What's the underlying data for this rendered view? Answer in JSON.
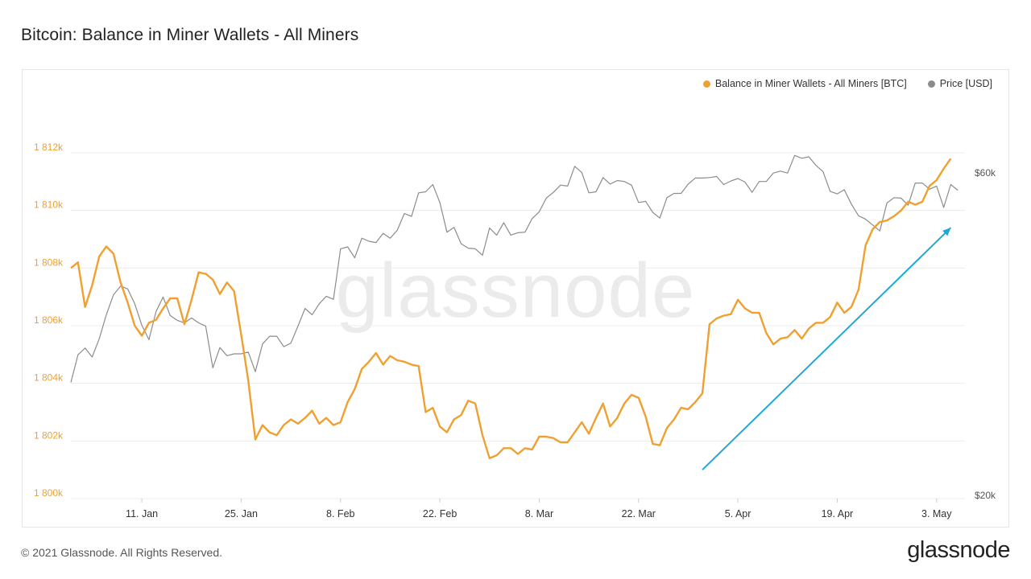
{
  "header": {
    "title": "Bitcoin: Balance in Miner Wallets - All Miners"
  },
  "footer": {
    "copyright": "© 2021 Glassnode. All Rights Reserved.",
    "logo_text": "glassnode"
  },
  "watermark": "glassnode",
  "colors": {
    "balance": "#f0a030",
    "price": "#8c8c8c",
    "arrow": "#1fa8d6",
    "grid": "#ececec"
  },
  "chart_data": {
    "type": "line",
    "title": "Bitcoin: Balance in Miner Wallets - All Miners",
    "legend": [
      {
        "key": "balance",
        "label": "Balance in Miner Wallets - All Miners [BTC]"
      },
      {
        "key": "price",
        "label": "Price [USD]"
      }
    ],
    "legend_position": "top-right",
    "grid": true,
    "x_ticks": [
      "11. Jan",
      "25. Jan",
      "8. Feb",
      "22. Feb",
      "8. Mar",
      "22. Mar",
      "5. Apr",
      "19. Apr",
      "3. May"
    ],
    "x_range": [
      "2021-01-01",
      "2021-05-08"
    ],
    "y_left": {
      "label": "Balance in Miner Wallets - All Miners [BTC]",
      "ticks": [
        "1 800k",
        "1 802k",
        "1 804k",
        "1 806k",
        "1 808k",
        "1 810k",
        "1 812k"
      ],
      "range": [
        1800000,
        1814000
      ]
    },
    "y_right": {
      "label": "Price [USD]",
      "ticks": [
        "$20k",
        "$60k"
      ],
      "scale": "log",
      "range": [
        20000,
        70000
      ]
    },
    "series": [
      {
        "name": "Balance in Miner Wallets - All Miners [BTC]",
        "key": "balance",
        "axis": "left",
        "points": [
          [
            "2021-01-01",
            1808000
          ],
          [
            "2021-01-02",
            1808200
          ],
          [
            "2021-01-03",
            1806650
          ],
          [
            "2021-01-04",
            1807400
          ],
          [
            "2021-01-05",
            1808400
          ],
          [
            "2021-01-06",
            1808750
          ],
          [
            "2021-01-07",
            1808500
          ],
          [
            "2021-01-08",
            1807500
          ],
          [
            "2021-01-09",
            1806800
          ],
          [
            "2021-01-10",
            1806000
          ],
          [
            "2021-01-11",
            1805650
          ],
          [
            "2021-01-12",
            1806100
          ],
          [
            "2021-01-13",
            1806200
          ],
          [
            "2021-01-14",
            1806600
          ],
          [
            "2021-01-15",
            1806950
          ],
          [
            "2021-01-16",
            1806950
          ],
          [
            "2021-01-17",
            1806050
          ],
          [
            "2021-01-18",
            1806900
          ],
          [
            "2021-01-19",
            1807850
          ],
          [
            "2021-01-20",
            1807800
          ],
          [
            "2021-01-21",
            1807600
          ],
          [
            "2021-01-22",
            1807100
          ],
          [
            "2021-01-23",
            1807500
          ],
          [
            "2021-01-24",
            1807200
          ],
          [
            "2021-01-25",
            1805700
          ],
          [
            "2021-01-26",
            1804100
          ],
          [
            "2021-01-27",
            1802050
          ],
          [
            "2021-01-28",
            1802550
          ],
          [
            "2021-01-29",
            1802300
          ],
          [
            "2021-01-30",
            1802200
          ],
          [
            "2021-01-31",
            1802550
          ],
          [
            "2021-02-01",
            1802750
          ],
          [
            "2021-02-02",
            1802600
          ],
          [
            "2021-02-03",
            1802800
          ],
          [
            "2021-02-04",
            1803050
          ],
          [
            "2021-02-05",
            1802600
          ],
          [
            "2021-02-06",
            1802800
          ],
          [
            "2021-02-07",
            1802550
          ],
          [
            "2021-02-08",
            1802650
          ],
          [
            "2021-02-09",
            1803350
          ],
          [
            "2021-02-10",
            1803800
          ],
          [
            "2021-02-11",
            1804500
          ],
          [
            "2021-02-12",
            1804750
          ],
          [
            "2021-02-13",
            1805050
          ],
          [
            "2021-02-14",
            1804650
          ],
          [
            "2021-02-15",
            1804950
          ],
          [
            "2021-02-16",
            1804800
          ],
          [
            "2021-02-17",
            1804750
          ],
          [
            "2021-02-18",
            1804650
          ],
          [
            "2021-02-19",
            1804600
          ],
          [
            "2021-02-20",
            1803000
          ],
          [
            "2021-02-21",
            1803150
          ],
          [
            "2021-02-22",
            1802500
          ],
          [
            "2021-02-23",
            1802300
          ],
          [
            "2021-02-24",
            1802750
          ],
          [
            "2021-02-25",
            1802900
          ],
          [
            "2021-02-26",
            1803400
          ],
          [
            "2021-02-27",
            1803300
          ],
          [
            "2021-02-28",
            1802200
          ],
          [
            "2021-03-01",
            1801400
          ],
          [
            "2021-03-02",
            1801500
          ],
          [
            "2021-03-03",
            1801750
          ],
          [
            "2021-03-04",
            1801750
          ],
          [
            "2021-03-05",
            1801550
          ],
          [
            "2021-03-06",
            1801750
          ],
          [
            "2021-03-07",
            1801700
          ],
          [
            "2021-03-08",
            1802150
          ],
          [
            "2021-03-09",
            1802150
          ],
          [
            "2021-03-10",
            1802100
          ],
          [
            "2021-03-11",
            1801950
          ],
          [
            "2021-03-12",
            1801950
          ],
          [
            "2021-03-13",
            1802300
          ],
          [
            "2021-03-14",
            1802650
          ],
          [
            "2021-03-15",
            1802250
          ],
          [
            "2021-03-16",
            1802800
          ],
          [
            "2021-03-17",
            1803300
          ],
          [
            "2021-03-18",
            1802500
          ],
          [
            "2021-03-19",
            1802800
          ],
          [
            "2021-03-20",
            1803300
          ],
          [
            "2021-03-21",
            1803600
          ],
          [
            "2021-03-22",
            1803500
          ],
          [
            "2021-03-23",
            1802850
          ],
          [
            "2021-03-24",
            1801900
          ],
          [
            "2021-03-25",
            1801850
          ],
          [
            "2021-03-26",
            1802450
          ],
          [
            "2021-03-27",
            1802750
          ],
          [
            "2021-03-28",
            1803150
          ],
          [
            "2021-03-29",
            1803100
          ],
          [
            "2021-03-30",
            1803350
          ],
          [
            "2021-03-31",
            1803650
          ],
          [
            "2021-04-01",
            1806050
          ],
          [
            "2021-04-02",
            1806250
          ],
          [
            "2021-04-03",
            1806350
          ],
          [
            "2021-04-04",
            1806400
          ],
          [
            "2021-04-05",
            1806900
          ],
          [
            "2021-04-06",
            1806600
          ],
          [
            "2021-04-07",
            1806450
          ],
          [
            "2021-04-08",
            1806450
          ],
          [
            "2021-04-09",
            1805750
          ],
          [
            "2021-04-10",
            1805350
          ],
          [
            "2021-04-11",
            1805550
          ],
          [
            "2021-04-12",
            1805600
          ],
          [
            "2021-04-13",
            1805850
          ],
          [
            "2021-04-14",
            1805550
          ],
          [
            "2021-04-15",
            1805900
          ],
          [
            "2021-04-16",
            1806100
          ],
          [
            "2021-04-17",
            1806100
          ],
          [
            "2021-04-18",
            1806300
          ],
          [
            "2021-04-19",
            1806800
          ],
          [
            "2021-04-20",
            1806450
          ],
          [
            "2021-04-21",
            1806650
          ],
          [
            "2021-04-22",
            1807250
          ],
          [
            "2021-04-23",
            1808800
          ],
          [
            "2021-04-24",
            1809350
          ],
          [
            "2021-04-25",
            1809600
          ],
          [
            "2021-04-26",
            1809650
          ],
          [
            "2021-04-27",
            1809800
          ],
          [
            "2021-04-28",
            1810000
          ],
          [
            "2021-04-29",
            1810300
          ],
          [
            "2021-04-30",
            1810200
          ],
          [
            "2021-05-01",
            1810300
          ],
          [
            "2021-05-02",
            1810850
          ],
          [
            "2021-05-03",
            1811050
          ],
          [
            "2021-05-04",
            1811450
          ],
          [
            "2021-05-05",
            1811800
          ]
        ]
      },
      {
        "name": "Price [USD]",
        "key": "price",
        "axis": "right",
        "points": [
          [
            "2021-01-01",
            29300
          ],
          [
            "2021-01-02",
            32200
          ],
          [
            "2021-01-03",
            32950
          ],
          [
            "2021-01-04",
            31950
          ],
          [
            "2021-01-05",
            34000
          ],
          [
            "2021-01-06",
            36900
          ],
          [
            "2021-01-07",
            39500
          ],
          [
            "2021-01-08",
            40700
          ],
          [
            "2021-01-09",
            40300
          ],
          [
            "2021-01-10",
            38300
          ],
          [
            "2021-01-11",
            35600
          ],
          [
            "2021-01-12",
            33900
          ],
          [
            "2021-01-13",
            37300
          ],
          [
            "2021-01-14",
            39200
          ],
          [
            "2021-01-15",
            36800
          ],
          [
            "2021-01-16",
            36200
          ],
          [
            "2021-01-17",
            35900
          ],
          [
            "2021-01-18",
            36500
          ],
          [
            "2021-01-19",
            35900
          ],
          [
            "2021-01-20",
            35500
          ],
          [
            "2021-01-21",
            30800
          ],
          [
            "2021-01-22",
            33000
          ],
          [
            "2021-01-23",
            32100
          ],
          [
            "2021-01-24",
            32300
          ],
          [
            "2021-01-25",
            32300
          ],
          [
            "2021-01-26",
            32500
          ],
          [
            "2021-01-27",
            30400
          ],
          [
            "2021-01-28",
            33400
          ],
          [
            "2021-01-29",
            34300
          ],
          [
            "2021-01-30",
            34300
          ],
          [
            "2021-01-31",
            33100
          ],
          [
            "2021-02-01",
            33500
          ],
          [
            "2021-02-02",
            35500
          ],
          [
            "2021-02-03",
            37700
          ],
          [
            "2021-02-04",
            36900
          ],
          [
            "2021-02-05",
            38300
          ],
          [
            "2021-02-06",
            39300
          ],
          [
            "2021-02-07",
            38900
          ],
          [
            "2021-02-08",
            46200
          ],
          [
            "2021-02-09",
            46500
          ],
          [
            "2021-02-10",
            44800
          ],
          [
            "2021-02-11",
            47900
          ],
          [
            "2021-02-12",
            47400
          ],
          [
            "2021-02-13",
            47200
          ],
          [
            "2021-02-14",
            48700
          ],
          [
            "2021-02-15",
            47900
          ],
          [
            "2021-02-16",
            49200
          ],
          [
            "2021-02-17",
            52100
          ],
          [
            "2021-02-18",
            51600
          ],
          [
            "2021-02-19",
            55900
          ],
          [
            "2021-02-20",
            56100
          ],
          [
            "2021-02-21",
            57500
          ],
          [
            "2021-02-22",
            54100
          ],
          [
            "2021-02-23",
            48900
          ],
          [
            "2021-02-24",
            49700
          ],
          [
            "2021-02-25",
            47000
          ],
          [
            "2021-02-26",
            46300
          ],
          [
            "2021-02-27",
            46200
          ],
          [
            "2021-02-28",
            45200
          ],
          [
            "2021-03-01",
            49600
          ],
          [
            "2021-03-02",
            48400
          ],
          [
            "2021-03-03",
            50500
          ],
          [
            "2021-03-04",
            48400
          ],
          [
            "2021-03-05",
            48800
          ],
          [
            "2021-03-06",
            48900
          ],
          [
            "2021-03-07",
            51200
          ],
          [
            "2021-03-08",
            52400
          ],
          [
            "2021-03-09",
            54900
          ],
          [
            "2021-03-10",
            56000
          ],
          [
            "2021-03-11",
            57400
          ],
          [
            "2021-03-12",
            57200
          ],
          [
            "2021-03-13",
            61200
          ],
          [
            "2021-03-14",
            59900
          ],
          [
            "2021-03-15",
            55900
          ],
          [
            "2021-03-16",
            56100
          ],
          [
            "2021-03-17",
            58900
          ],
          [
            "2021-03-18",
            57600
          ],
          [
            "2021-03-19",
            58300
          ],
          [
            "2021-03-20",
            58100
          ],
          [
            "2021-03-21",
            57400
          ],
          [
            "2021-03-22",
            54100
          ],
          [
            "2021-03-23",
            54300
          ],
          [
            "2021-03-24",
            52300
          ],
          [
            "2021-03-25",
            51300
          ],
          [
            "2021-03-26",
            55000
          ],
          [
            "2021-03-27",
            55800
          ],
          [
            "2021-03-28",
            55800
          ],
          [
            "2021-03-29",
            57600
          ],
          [
            "2021-03-30",
            58800
          ],
          [
            "2021-03-31",
            58800
          ],
          [
            "2021-04-01",
            58900
          ],
          [
            "2021-04-02",
            59100
          ],
          [
            "2021-04-03",
            57500
          ],
          [
            "2021-04-04",
            58200
          ],
          [
            "2021-04-05",
            58700
          ],
          [
            "2021-04-06",
            58000
          ],
          [
            "2021-04-07",
            56000
          ],
          [
            "2021-04-08",
            58100
          ],
          [
            "2021-04-09",
            58100
          ],
          [
            "2021-04-10",
            59800
          ],
          [
            "2021-04-11",
            60200
          ],
          [
            "2021-04-12",
            59800
          ],
          [
            "2021-04-13",
            63500
          ],
          [
            "2021-04-14",
            62900
          ],
          [
            "2021-04-15",
            63200
          ],
          [
            "2021-04-16",
            61400
          ],
          [
            "2021-04-17",
            60100
          ],
          [
            "2021-04-18",
            56200
          ],
          [
            "2021-04-19",
            55700
          ],
          [
            "2021-04-20",
            56500
          ],
          [
            "2021-04-21",
            53800
          ],
          [
            "2021-04-22",
            51700
          ],
          [
            "2021-04-23",
            51100
          ],
          [
            "2021-04-24",
            50100
          ],
          [
            "2021-04-25",
            49100
          ],
          [
            "2021-04-26",
            54000
          ],
          [
            "2021-04-27",
            55000
          ],
          [
            "2021-04-28",
            54900
          ],
          [
            "2021-04-29",
            53600
          ],
          [
            "2021-04-30",
            57800
          ],
          [
            "2021-05-01",
            57800
          ],
          [
            "2021-05-02",
            56600
          ],
          [
            "2021-05-03",
            57200
          ],
          [
            "2021-05-04",
            53200
          ],
          [
            "2021-05-05",
            57500
          ],
          [
            "2021-05-06",
            56400
          ]
        ]
      }
    ],
    "annotations": [
      {
        "type": "arrow",
        "from": [
          "2021-03-31",
          1801000
        ],
        "to": [
          "2021-05-05",
          1809400
        ]
      }
    ]
  }
}
